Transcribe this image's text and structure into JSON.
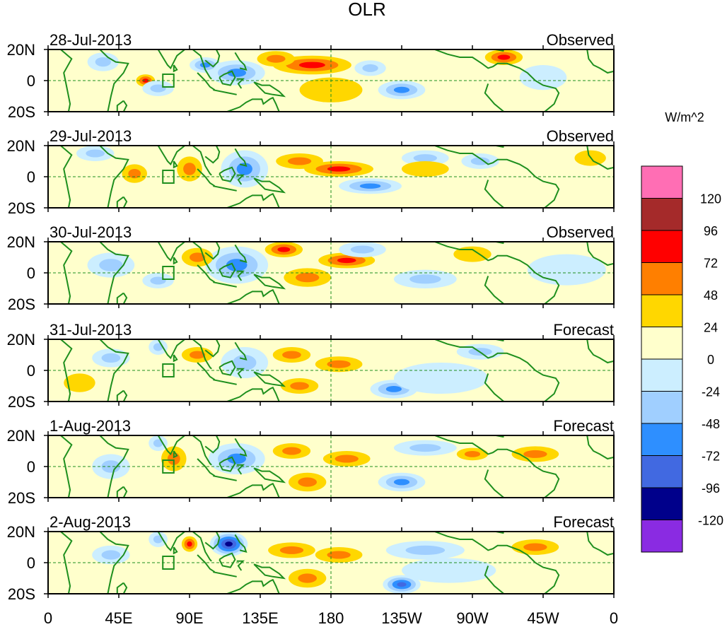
{
  "chart_data": {
    "type": "heatmap",
    "title": "OLR",
    "units_label": "W/m^2",
    "y_tick_labels": [
      "20N",
      "0",
      "20S"
    ],
    "x_tick_labels": [
      "0",
      "45E",
      "90E",
      "135E",
      "180",
      "135W",
      "90W",
      "45W",
      "0"
    ],
    "lon_range": [
      0,
      360
    ],
    "lat_range": [
      -20,
      20
    ],
    "panels": [
      {
        "date": "28-Jul-2013",
        "status": "Observed",
        "blobs": [
          {
            "lon": 168,
            "lat": 10,
            "rlon": 25,
            "rlat": 6,
            "v": 55
          },
          {
            "lon": 145,
            "lat": 14,
            "rlon": 12,
            "rlat": 5,
            "v": 40
          },
          {
            "lon": 62,
            "lat": 0,
            "rlon": 6,
            "rlat": 4,
            "v": 50
          },
          {
            "lon": 120,
            "lat": 5,
            "rlon": 18,
            "rlat": 8,
            "v": -55
          },
          {
            "lon": 100,
            "lat": 10,
            "rlon": 10,
            "rlat": 5,
            "v": -50
          },
          {
            "lon": 180,
            "lat": -6,
            "rlon": 20,
            "rlat": 8,
            "v": 15
          },
          {
            "lon": 225,
            "lat": -6,
            "rlon": 15,
            "rlat": 6,
            "v": -70
          },
          {
            "lon": 205,
            "lat": 8,
            "rlon": 10,
            "rlat": 5,
            "v": -40
          },
          {
            "lon": 290,
            "lat": 15,
            "rlon": 12,
            "rlat": 5,
            "v": 50
          },
          {
            "lon": 315,
            "lat": 2,
            "rlon": 15,
            "rlat": 8,
            "v": -20
          },
          {
            "lon": 70,
            "lat": -5,
            "rlon": 10,
            "rlat": 5,
            "v": -30
          },
          {
            "lon": 35,
            "lat": 12,
            "rlon": 10,
            "rlat": 6,
            "v": -25
          }
        ]
      },
      {
        "date": "29-Jul-2013",
        "status": "Observed",
        "blobs": [
          {
            "lon": 160,
            "lat": 10,
            "rlon": 15,
            "rlat": 5,
            "v": 45
          },
          {
            "lon": 185,
            "lat": 5,
            "rlon": 22,
            "rlat": 5,
            "v": 50
          },
          {
            "lon": 125,
            "lat": 5,
            "rlon": 15,
            "rlat": 12,
            "v": -60
          },
          {
            "lon": 90,
            "lat": 5,
            "rlon": 8,
            "rlat": 8,
            "v": 30
          },
          {
            "lon": 55,
            "lat": 2,
            "rlon": 8,
            "rlat": 6,
            "v": 45
          },
          {
            "lon": 205,
            "lat": -6,
            "rlon": 20,
            "rlat": 5,
            "v": -65
          },
          {
            "lon": 275,
            "lat": 10,
            "rlon": 12,
            "rlat": 5,
            "v": -40
          },
          {
            "lon": 240,
            "lat": 12,
            "rlon": 15,
            "rlat": 5,
            "v": -25
          },
          {
            "lon": 30,
            "lat": 15,
            "rlon": 12,
            "rlat": 5,
            "v": -30
          },
          {
            "lon": 240,
            "lat": 5,
            "rlon": 15,
            "rlat": 5,
            "v": 20
          },
          {
            "lon": 345,
            "lat": 12,
            "rlon": 10,
            "rlat": 5,
            "v": 20
          }
        ]
      },
      {
        "date": "30-Jul-2013",
        "status": "Observed",
        "blobs": [
          {
            "lon": 150,
            "lat": 15,
            "rlon": 12,
            "rlat": 5,
            "v": 60
          },
          {
            "lon": 190,
            "lat": 8,
            "rlon": 18,
            "rlat": 5,
            "v": 50
          },
          {
            "lon": 165,
            "lat": -3,
            "rlon": 15,
            "rlat": 6,
            "v": 45
          },
          {
            "lon": 120,
            "lat": 5,
            "rlon": 20,
            "rlat": 12,
            "v": -55
          },
          {
            "lon": 95,
            "lat": 10,
            "rlon": 10,
            "rlat": 6,
            "v": 30
          },
          {
            "lon": 240,
            "lat": -4,
            "rlon": 20,
            "rlat": 6,
            "v": -30
          },
          {
            "lon": 40,
            "lat": 5,
            "rlon": 15,
            "rlat": 8,
            "v": -35
          },
          {
            "lon": 200,
            "lat": 15,
            "rlon": 15,
            "rlat": 5,
            "v": -30
          },
          {
            "lon": 330,
            "lat": 2,
            "rlon": 25,
            "rlat": 10,
            "v": -20
          },
          {
            "lon": 270,
            "lat": 12,
            "rlon": 12,
            "rlat": 5,
            "v": 20
          },
          {
            "lon": 70,
            "lat": -5,
            "rlon": 10,
            "rlat": 5,
            "v": -40
          }
        ]
      },
      {
        "date": "31-Jul-2013",
        "status": "Forecast",
        "blobs": [
          {
            "lon": 155,
            "lat": 10,
            "rlon": 12,
            "rlat": 5,
            "v": 40
          },
          {
            "lon": 185,
            "lat": 4,
            "rlon": 15,
            "rlat": 5,
            "v": 45
          },
          {
            "lon": 125,
            "lat": 5,
            "rlon": 15,
            "rlat": 10,
            "v": -45
          },
          {
            "lon": 160,
            "lat": -10,
            "rlon": 12,
            "rlat": 5,
            "v": 35
          },
          {
            "lon": 220,
            "lat": -12,
            "rlon": 15,
            "rlat": 6,
            "v": -60
          },
          {
            "lon": 250,
            "lat": -5,
            "rlon": 30,
            "rlat": 10,
            "v": -15
          },
          {
            "lon": 95,
            "lat": 10,
            "rlon": 10,
            "rlat": 5,
            "v": 30
          },
          {
            "lon": 40,
            "lat": 8,
            "rlon": 12,
            "rlat": 6,
            "v": -30
          },
          {
            "lon": 275,
            "lat": 12,
            "rlon": 15,
            "rlat": 5,
            "v": -25
          },
          {
            "lon": 70,
            "lat": 15,
            "rlon": 6,
            "rlat": 5,
            "v": -40
          },
          {
            "lon": 20,
            "lat": -8,
            "rlon": 10,
            "rlat": 6,
            "v": 20
          }
        ]
      },
      {
        "date": "1-Aug-2013",
        "status": "Forecast",
        "blobs": [
          {
            "lon": 155,
            "lat": 10,
            "rlon": 12,
            "rlat": 5,
            "v": 35
          },
          {
            "lon": 190,
            "lat": 5,
            "rlon": 15,
            "rlat": 5,
            "v": 40
          },
          {
            "lon": 120,
            "lat": 5,
            "rlon": 18,
            "rlat": 10,
            "v": -50
          },
          {
            "lon": 165,
            "lat": -10,
            "rlon": 12,
            "rlat": 6,
            "v": 35
          },
          {
            "lon": 225,
            "lat": -10,
            "rlon": 15,
            "rlat": 6,
            "v": -55
          },
          {
            "lon": 80,
            "lat": 5,
            "rlon": 8,
            "rlat": 8,
            "v": 30
          },
          {
            "lon": 240,
            "lat": 12,
            "rlon": 20,
            "rlat": 5,
            "v": -25
          },
          {
            "lon": 310,
            "lat": 8,
            "rlon": 15,
            "rlat": 5,
            "v": 35
          },
          {
            "lon": 40,
            "lat": 0,
            "rlon": 12,
            "rlat": 8,
            "v": -30
          },
          {
            "lon": 70,
            "lat": 15,
            "rlon": 6,
            "rlat": 5,
            "v": -45
          },
          {
            "lon": 270,
            "lat": 8,
            "rlon": 10,
            "rlat": 4,
            "v": 25
          }
        ]
      },
      {
        "date": "2-Aug-2013",
        "status": "Forecast",
        "blobs": [
          {
            "lon": 115,
            "lat": 12,
            "rlon": 12,
            "rlat": 8,
            "v": -100
          },
          {
            "lon": 90,
            "lat": 12,
            "rlon": 5,
            "rlat": 5,
            "v": 55
          },
          {
            "lon": 155,
            "lat": 8,
            "rlon": 15,
            "rlat": 5,
            "v": 35
          },
          {
            "lon": 185,
            "lat": 5,
            "rlon": 15,
            "rlat": 5,
            "v": 35
          },
          {
            "lon": 165,
            "lat": -10,
            "rlon": 12,
            "rlat": 6,
            "v": 35
          },
          {
            "lon": 225,
            "lat": -14,
            "rlon": 12,
            "rlat": 6,
            "v": -80
          },
          {
            "lon": 240,
            "lat": 8,
            "rlon": 25,
            "rlat": 6,
            "v": -25
          },
          {
            "lon": 310,
            "lat": 10,
            "rlon": 15,
            "rlat": 5,
            "v": 35
          },
          {
            "lon": 40,
            "lat": 5,
            "rlon": 12,
            "rlat": 6,
            "v": -35
          },
          {
            "lon": 255,
            "lat": -5,
            "rlon": 30,
            "rlat": 8,
            "v": -15
          },
          {
            "lon": 70,
            "lat": 15,
            "rlon": 6,
            "rlat": 5,
            "v": -45
          }
        ]
      }
    ]
  },
  "colorbar": {
    "tick_labels": [
      "120",
      "96",
      "72",
      "48",
      "24",
      "0",
      "-24",
      "-48",
      "-72",
      "-96",
      "-120"
    ],
    "colors": [
      "#ff6eb4",
      "#a52a2a",
      "#ff0000",
      "#ff7f00",
      "#ffd700",
      "#ffffcc",
      "#cceeff",
      "#a0cfff",
      "#2e8fff",
      "#4169e1",
      "#00008b",
      "#8a2be2"
    ]
  },
  "style_colors": {
    "coast": "#1e8f1e",
    "grid": "#1e8f1e",
    "box": "#1e8f1e"
  }
}
